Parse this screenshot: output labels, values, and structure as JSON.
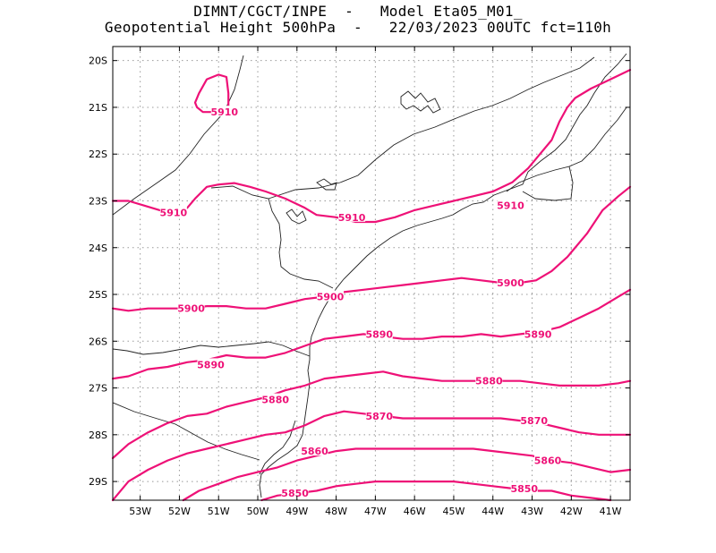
{
  "header": {
    "line1": "DIMNT/CGCT/INPE  -   Model Eta05_M01_",
    "line2": "Geopotential Height 500hPa  -   22/03/2023 00UTC fct=110h"
  },
  "map": {
    "lon_range": [
      -53.7,
      -40.5
    ],
    "lat_range": [
      -29.4,
      -19.7
    ],
    "lon_ticks": [
      {
        "lon": -53,
        "label": "53W"
      },
      {
        "lon": -52,
        "label": "52W"
      },
      {
        "lon": -51,
        "label": "51W"
      },
      {
        "lon": -50,
        "label": "50W"
      },
      {
        "lon": -49,
        "label": "49W"
      },
      {
        "lon": -48,
        "label": "48W"
      },
      {
        "lon": -47,
        "label": "47W"
      },
      {
        "lon": -46,
        "label": "46W"
      },
      {
        "lon": -45,
        "label": "45W"
      },
      {
        "lon": -44,
        "label": "44W"
      },
      {
        "lon": -43,
        "label": "43W"
      },
      {
        "lon": -42,
        "label": "42W"
      },
      {
        "lon": -41,
        "label": "41W"
      }
    ],
    "lat_ticks": [
      {
        "lat": -20,
        "label": "20S"
      },
      {
        "lat": -21,
        "label": "21S"
      },
      {
        "lat": -22,
        "label": "22S"
      },
      {
        "lat": -23,
        "label": "23S"
      },
      {
        "lat": -24,
        "label": "24S"
      },
      {
        "lat": -25,
        "label": "25S"
      },
      {
        "lat": -26,
        "label": "26S"
      },
      {
        "lat": -27,
        "label": "27S"
      },
      {
        "lat": -28,
        "label": "28S"
      },
      {
        "lat": -29,
        "label": "29S"
      }
    ],
    "contour_color": "#ee1177",
    "contours": [
      {
        "value": 5910,
        "label": "5910",
        "closed": true,
        "points": [
          [
            -51.6,
            -20.9
          ],
          [
            -51.5,
            -20.7
          ],
          [
            -51.3,
            -20.4
          ],
          [
            -51.0,
            -20.3
          ],
          [
            -50.8,
            -20.35
          ],
          [
            -50.75,
            -20.7
          ],
          [
            -50.75,
            -21.05
          ],
          [
            -51.0,
            -21.1
          ],
          [
            -51.4,
            -21.1
          ],
          [
            -51.55,
            -21.0
          ]
        ],
        "label_at": [
          -50.85,
          -21.1
        ]
      },
      {
        "value": 5910,
        "label": "5910",
        "closed": false,
        "points": [
          [
            -53.7,
            -23.0
          ],
          [
            -53.3,
            -23.0
          ],
          [
            -52.9,
            -23.1
          ],
          [
            -52.5,
            -23.2
          ],
          [
            -52.2,
            -23.25
          ],
          [
            -51.8,
            -23.15
          ],
          [
            -51.6,
            -22.95
          ],
          [
            -51.3,
            -22.7
          ],
          [
            -51.0,
            -22.65
          ],
          [
            -50.6,
            -22.62
          ],
          [
            -50.2,
            -22.7
          ],
          [
            -49.8,
            -22.8
          ],
          [
            -49.3,
            -22.95
          ],
          [
            -48.8,
            -23.15
          ],
          [
            -48.5,
            -23.3
          ],
          [
            -48.0,
            -23.35
          ],
          [
            -47.5,
            -23.45
          ],
          [
            -47.0,
            -23.45
          ],
          [
            -46.5,
            -23.35
          ],
          [
            -46.0,
            -23.2
          ],
          [
            -45.5,
            -23.1
          ],
          [
            -45.0,
            -23.0
          ],
          [
            -44.5,
            -22.9
          ],
          [
            -44.0,
            -22.8
          ],
          [
            -43.5,
            -22.6
          ],
          [
            -43.1,
            -22.3
          ],
          [
            -42.8,
            -22.0
          ],
          [
            -42.5,
            -21.7
          ],
          [
            -42.3,
            -21.3
          ],
          [
            -42.1,
            -21.0
          ],
          [
            -41.9,
            -20.8
          ],
          [
            -41.5,
            -20.6
          ],
          [
            -41.0,
            -20.4
          ],
          [
            -40.5,
            -20.2
          ]
        ],
        "label_at": [
          -47.6,
          -23.35
        ],
        "label_at2": [
          -52.15,
          -23.25
        ],
        "label_at3": [
          -43.55,
          -23.1
        ]
      },
      {
        "value": 5900,
        "label": "5900",
        "closed": false,
        "points": [
          [
            -53.7,
            -25.3
          ],
          [
            -53.3,
            -25.35
          ],
          [
            -52.8,
            -25.3
          ],
          [
            -52.3,
            -25.3
          ],
          [
            -51.8,
            -25.3
          ],
          [
            -51.3,
            -25.25
          ],
          [
            -50.8,
            -25.25
          ],
          [
            -50.3,
            -25.3
          ],
          [
            -49.8,
            -25.3
          ],
          [
            -49.3,
            -25.2
          ],
          [
            -48.8,
            -25.1
          ],
          [
            -48.3,
            -25.05
          ],
          [
            -47.8,
            -24.95
          ],
          [
            -47.3,
            -24.9
          ],
          [
            -46.8,
            -24.85
          ],
          [
            -46.3,
            -24.8
          ],
          [
            -45.8,
            -24.75
          ],
          [
            -45.3,
            -24.7
          ],
          [
            -44.8,
            -24.65
          ],
          [
            -44.3,
            -24.7
          ],
          [
            -43.8,
            -24.75
          ],
          [
            -43.3,
            -24.75
          ],
          [
            -42.9,
            -24.7
          ],
          [
            -42.5,
            -24.5
          ],
          [
            -42.1,
            -24.2
          ],
          [
            -41.6,
            -23.7
          ],
          [
            -41.2,
            -23.2
          ],
          [
            -40.8,
            -22.9
          ],
          [
            -40.5,
            -22.7
          ]
        ],
        "label_at": [
          -51.7,
          -25.3
        ],
        "label_at2": [
          -48.15,
          -25.05
        ],
        "label_at3": [
          -43.55,
          -24.75
        ]
      },
      {
        "value": 5890,
        "label": "5890",
        "closed": false,
        "points": [
          [
            -53.7,
            -26.8
          ],
          [
            -53.3,
            -26.75
          ],
          [
            -52.8,
            -26.6
          ],
          [
            -52.3,
            -26.55
          ],
          [
            -51.8,
            -26.45
          ],
          [
            -51.3,
            -26.4
          ],
          [
            -50.8,
            -26.3
          ],
          [
            -50.3,
            -26.35
          ],
          [
            -49.8,
            -26.35
          ],
          [
            -49.3,
            -26.25
          ],
          [
            -48.8,
            -26.1
          ],
          [
            -48.3,
            -25.95
          ],
          [
            -47.8,
            -25.9
          ],
          [
            -47.3,
            -25.85
          ],
          [
            -46.8,
            -25.9
          ],
          [
            -46.3,
            -25.95
          ],
          [
            -45.8,
            -25.95
          ],
          [
            -45.3,
            -25.9
          ],
          [
            -44.8,
            -25.9
          ],
          [
            -44.3,
            -25.85
          ],
          [
            -43.8,
            -25.9
          ],
          [
            -43.3,
            -25.85
          ],
          [
            -42.8,
            -25.8
          ],
          [
            -42.3,
            -25.7
          ],
          [
            -41.8,
            -25.5
          ],
          [
            -41.3,
            -25.3
          ],
          [
            -40.8,
            -25.05
          ],
          [
            -40.5,
            -24.9
          ]
        ],
        "label_at": [
          -51.2,
          -26.5
        ],
        "label_at2": [
          -46.9,
          -25.85
        ],
        "label_at3": [
          -42.85,
          -25.85
        ]
      },
      {
        "value": 5880,
        "label": "5880",
        "closed": false,
        "points": [
          [
            -53.7,
            -28.5
          ],
          [
            -53.3,
            -28.2
          ],
          [
            -52.8,
            -27.95
          ],
          [
            -52.3,
            -27.75
          ],
          [
            -51.8,
            -27.6
          ],
          [
            -51.3,
            -27.55
          ],
          [
            -50.8,
            -27.4
          ],
          [
            -50.3,
            -27.3
          ],
          [
            -49.8,
            -27.2
          ],
          [
            -49.3,
            -27.05
          ],
          [
            -48.8,
            -26.95
          ],
          [
            -48.3,
            -26.8
          ],
          [
            -47.8,
            -26.75
          ],
          [
            -47.3,
            -26.7
          ],
          [
            -46.8,
            -26.65
          ],
          [
            -46.3,
            -26.75
          ],
          [
            -45.8,
            -26.8
          ],
          [
            -45.3,
            -26.85
          ],
          [
            -44.8,
            -26.85
          ],
          [
            -44.3,
            -26.85
          ],
          [
            -43.8,
            -26.85
          ],
          [
            -43.3,
            -26.85
          ],
          [
            -42.8,
            -26.9
          ],
          [
            -42.3,
            -26.95
          ],
          [
            -41.8,
            -26.95
          ],
          [
            -41.3,
            -26.95
          ],
          [
            -40.8,
            -26.9
          ],
          [
            -40.5,
            -26.85
          ]
        ],
        "label_at": [
          -49.55,
          -27.25
        ],
        "label_at2": [
          -44.1,
          -26.85
        ]
      },
      {
        "value": 5870,
        "label": "5870",
        "closed": false,
        "points": [
          [
            -53.7,
            -29.4
          ],
          [
            -53.3,
            -29.0
          ],
          [
            -52.8,
            -28.75
          ],
          [
            -52.3,
            -28.55
          ],
          [
            -51.8,
            -28.4
          ],
          [
            -51.3,
            -28.3
          ],
          [
            -50.8,
            -28.2
          ],
          [
            -50.3,
            -28.1
          ],
          [
            -49.8,
            -28.0
          ],
          [
            -49.3,
            -27.95
          ],
          [
            -48.8,
            -27.8
          ],
          [
            -48.3,
            -27.6
          ],
          [
            -47.8,
            -27.5
          ],
          [
            -47.3,
            -27.55
          ],
          [
            -46.8,
            -27.6
          ],
          [
            -46.3,
            -27.65
          ],
          [
            -45.8,
            -27.65
          ],
          [
            -45.3,
            -27.65
          ],
          [
            -44.8,
            -27.65
          ],
          [
            -44.3,
            -27.65
          ],
          [
            -43.8,
            -27.65
          ],
          [
            -43.3,
            -27.7
          ],
          [
            -42.8,
            -27.75
          ],
          [
            -42.3,
            -27.85
          ],
          [
            -41.8,
            -27.95
          ],
          [
            -41.3,
            -28.0
          ],
          [
            -40.8,
            -28.0
          ],
          [
            -40.5,
            -28.0
          ]
        ],
        "label_at": [
          -46.9,
          -27.6
        ],
        "label_at2": [
          -42.95,
          -27.7
        ]
      },
      {
        "value": 5860,
        "label": "5860",
        "closed": false,
        "points": [
          [
            -51.9,
            -29.4
          ],
          [
            -51.5,
            -29.2
          ],
          [
            -51.0,
            -29.05
          ],
          [
            -50.5,
            -28.9
          ],
          [
            -50.0,
            -28.8
          ],
          [
            -49.5,
            -28.7
          ],
          [
            -49.0,
            -28.55
          ],
          [
            -48.5,
            -28.45
          ],
          [
            -48.0,
            -28.35
          ],
          [
            -47.5,
            -28.3
          ],
          [
            -47.0,
            -28.3
          ],
          [
            -46.5,
            -28.3
          ],
          [
            -46.0,
            -28.3
          ],
          [
            -45.5,
            -28.3
          ],
          [
            -45.0,
            -28.3
          ],
          [
            -44.5,
            -28.3
          ],
          [
            -44.0,
            -28.35
          ],
          [
            -43.5,
            -28.4
          ],
          [
            -43.0,
            -28.45
          ],
          [
            -42.5,
            -28.55
          ],
          [
            -42.0,
            -28.6
          ],
          [
            -41.5,
            -28.7
          ],
          [
            -41.0,
            -28.8
          ],
          [
            -40.5,
            -28.75
          ]
        ],
        "label_at": [
          -48.55,
          -28.35
        ],
        "label_at2": [
          -42.6,
          -28.55
        ]
      },
      {
        "value": 5850,
        "label": "5850",
        "closed": false,
        "points": [
          [
            -49.9,
            -29.4
          ],
          [
            -49.5,
            -29.3
          ],
          [
            -49.0,
            -29.25
          ],
          [
            -48.5,
            -29.2
          ],
          [
            -48.0,
            -29.1
          ],
          [
            -47.5,
            -29.05
          ],
          [
            -47.0,
            -29.0
          ],
          [
            -46.5,
            -29.0
          ],
          [
            -46.0,
            -29.0
          ],
          [
            -45.5,
            -29.0
          ],
          [
            -45.0,
            -29.0
          ],
          [
            -44.5,
            -29.05
          ],
          [
            -44.0,
            -29.1
          ],
          [
            -43.5,
            -29.15
          ],
          [
            -43.0,
            -29.2
          ],
          [
            -42.5,
            -29.2
          ],
          [
            -42.0,
            -29.3
          ],
          [
            -41.5,
            -29.35
          ],
          [
            -41.0,
            -29.4
          ]
        ],
        "label_at": [
          -49.05,
          -29.25
        ],
        "label_at2": [
          -43.2,
          -29.15
        ]
      }
    ]
  }
}
